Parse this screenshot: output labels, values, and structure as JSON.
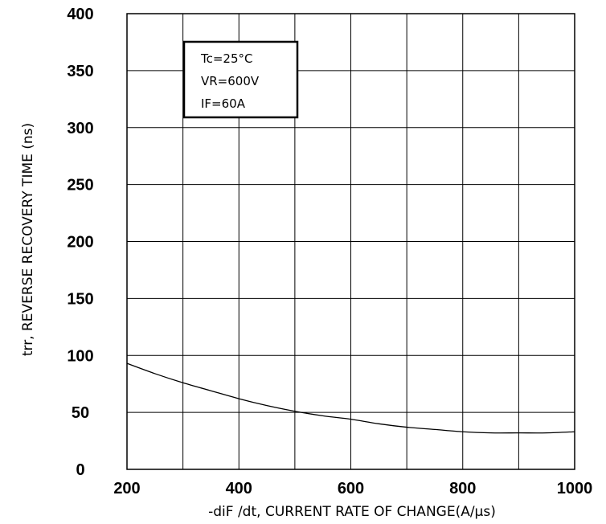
{
  "chart_data": {
    "type": "line",
    "title": "",
    "xlabel": "-diF /dt, CURRENT RATE OF CHANGE(A/μs)",
    "ylabel": "trr, REVERSE RECOVERY TIME (ns)",
    "xlim": [
      200,
      1000
    ],
    "ylim": [
      0,
      400
    ],
    "x_ticks": [
      200,
      300,
      400,
      500,
      600,
      700,
      800,
      900,
      1000
    ],
    "x_tick_labels": [
      "200",
      "",
      "400",
      "",
      "600",
      "",
      "800",
      "",
      "1000"
    ],
    "y_ticks": [
      0,
      50,
      100,
      150,
      200,
      250,
      300,
      350,
      400
    ],
    "y_tick_labels": [
      "0",
      "50",
      "100",
      "150",
      "200",
      "250",
      "300",
      "350",
      "400"
    ],
    "grid": true,
    "series": [
      {
        "name": "",
        "color": "#000000",
        "x": [
          200,
          250,
          300,
          350,
          400,
          450,
          500,
          550,
          600,
          650,
          700,
          750,
          800,
          850,
          900,
          950,
          1000
        ],
        "y": [
          93,
          84,
          76,
          69,
          62,
          56,
          51,
          47,
          44,
          40,
          37,
          35,
          33,
          32,
          32,
          32,
          33
        ]
      }
    ],
    "annotation": {
      "lines": [
        "Tc=25°C",
        "VR=600V",
        "IF=60A"
      ]
    }
  }
}
